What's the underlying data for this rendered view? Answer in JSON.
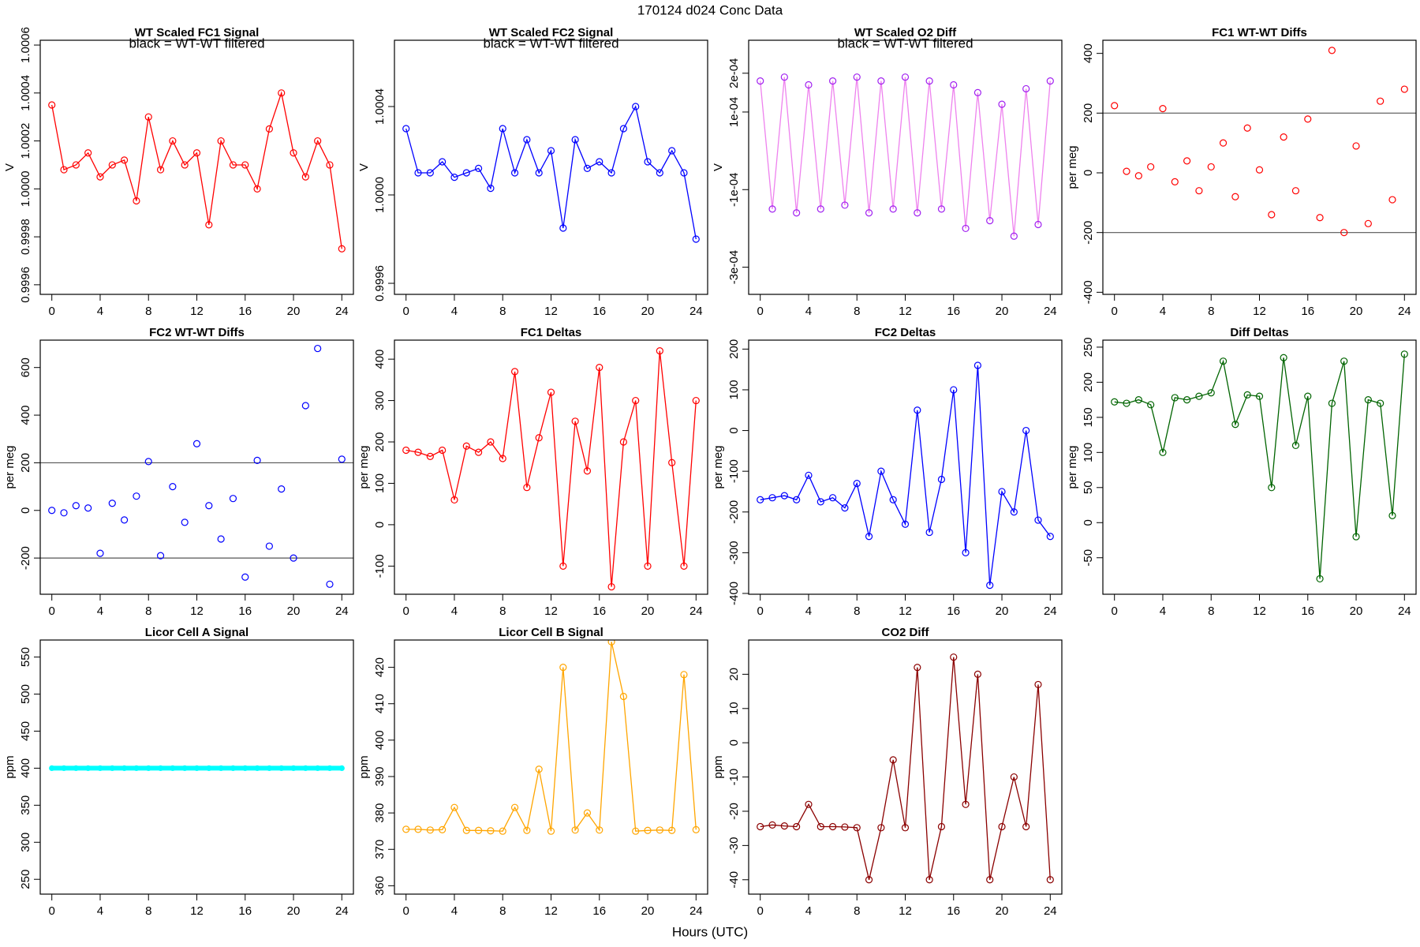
{
  "title": "170124   d024   Conc Data",
  "xlabel": "Hours (UTC)",
  "chart_data": [
    {
      "type": "line",
      "title": "WT Scaled FC1 Signal",
      "annotation": "black = WT-WT filtered",
      "ylabel": "V",
      "color": "#ff0000",
      "marker_color": "#ff0000",
      "x": [
        0,
        1,
        2,
        3,
        4,
        5,
        6,
        7,
        8,
        9,
        10,
        11,
        12,
        13,
        14,
        15,
        16,
        17,
        18,
        19,
        20,
        21,
        22,
        23,
        24
      ],
      "values": [
        1.00035,
        1.00008,
        1.0001,
        1.00015,
        1.00005,
        1.0001,
        1.00012,
        0.99995,
        1.0003,
        1.00008,
        1.0002,
        1.0001,
        1.00015,
        0.99985,
        1.0002,
        1.0001,
        1.0001,
        1.0,
        1.00025,
        1.0004,
        1.00015,
        1.00005,
        1.0002,
        1.0001,
        0.99975
      ],
      "xlim": [
        -0.96,
        24.96
      ],
      "xticks": [
        0,
        4,
        8,
        12,
        16,
        20,
        24
      ],
      "ylim": [
        0.99956,
        1.00062
      ],
      "yticks": [
        {
          "value": 0.9996,
          "label": "0.9996"
        },
        {
          "value": 0.9998,
          "label": "0.9998"
        },
        {
          "value": 1.0,
          "label": "1.0000"
        },
        {
          "value": 1.0002,
          "label": "1.0002"
        },
        {
          "value": 1.0004,
          "label": "1.0004"
        },
        {
          "value": 1.0006,
          "label": "1.0006"
        }
      ]
    },
    {
      "type": "line",
      "title": "WT Scaled FC2 Signal",
      "annotation": "black = WT-WT filtered",
      "ylabel": "V",
      "color": "#0000ff",
      "marker_color": "#0000ff",
      "x": [
        0,
        1,
        2,
        3,
        4,
        5,
        6,
        7,
        8,
        9,
        10,
        11,
        12,
        13,
        14,
        15,
        16,
        17,
        18,
        19,
        20,
        21,
        22,
        23,
        24
      ],
      "values": [
        1.0003,
        1.0001,
        1.0001,
        1.00015,
        1.00008,
        1.0001,
        1.00012,
        1.00003,
        1.0003,
        1.0001,
        1.00025,
        1.0001,
        1.0002,
        0.99985,
        1.00025,
        1.00012,
        1.00015,
        1.0001,
        1.0003,
        1.0004,
        1.00015,
        1.0001,
        1.0002,
        1.0001,
        0.9998
      ],
      "xlim": [
        -0.96,
        24.96
      ],
      "xticks": [
        0,
        4,
        8,
        12,
        16,
        20,
        24
      ],
      "ylim": [
        0.99955,
        1.0007
      ],
      "yticks": [
        {
          "value": 0.9996,
          "label": "0.9996"
        },
        {
          "value": 1.0,
          "label": "1.0000"
        },
        {
          "value": 1.0004,
          "label": "1.0004"
        }
      ]
    },
    {
      "type": "line",
      "title": "WT Scaled O2 Diff",
      "annotation": "black = WT-WT filtered",
      "ylabel": "V",
      "color": "#ee82ee",
      "marker_color": "#a020f0",
      "x": [
        0,
        1,
        2,
        3,
        4,
        5,
        6,
        7,
        8,
        9,
        10,
        11,
        12,
        13,
        14,
        15,
        16,
        17,
        18,
        19,
        20,
        21,
        22,
        23,
        24
      ],
      "values": [
        0.00018,
        -0.00015,
        0.00019,
        -0.00016,
        0.00017,
        -0.00015,
        0.00018,
        -0.00014,
        0.00019,
        -0.00016,
        0.00018,
        -0.00015,
        0.00019,
        -0.00016,
        0.00018,
        -0.00015,
        0.00017,
        -0.0002,
        0.00015,
        -0.00018,
        0.00012,
        -0.00022,
        0.00016,
        -0.00019,
        0.00018
      ],
      "xlim": [
        -0.96,
        24.96
      ],
      "xticks": [
        0,
        4,
        8,
        12,
        16,
        20,
        24
      ],
      "ylim": [
        -0.00037,
        0.000285
      ],
      "yticks": [
        {
          "value": -0.0003,
          "label": "-3e-04"
        },
        {
          "value": -0.0001,
          "label": "-1e-04"
        },
        {
          "value": 0.0001,
          "label": "1e-04"
        },
        {
          "value": 0.0002,
          "label": "2e-04"
        }
      ]
    },
    {
      "type": "scatter",
      "title": "FC1 WT-WT Diffs",
      "ylabel": "per meg",
      "color": "#ff0000",
      "hlines": [
        200,
        -200
      ],
      "x": [
        0,
        1,
        2,
        3,
        4,
        5,
        6,
        7,
        8,
        9,
        10,
        11,
        12,
        13,
        14,
        15,
        16,
        17,
        18,
        19,
        20,
        21,
        22,
        23,
        24
      ],
      "values": [
        225,
        5,
        -10,
        20,
        215,
        -30,
        40,
        -60,
        20,
        100,
        -80,
        150,
        10,
        -140,
        120,
        -60,
        180,
        -150,
        410,
        -200,
        90,
        -170,
        240,
        -90,
        280
      ],
      "xlim": [
        -0.96,
        24.96
      ],
      "xticks": [
        0,
        4,
        8,
        12,
        16,
        20,
        24
      ],
      "ylim": [
        -407,
        444
      ],
      "yticks": [
        -400,
        -200,
        0,
        200,
        400
      ]
    },
    {
      "type": "scatter",
      "title": "FC2 WT-WT Diffs",
      "ylabel": "per meg",
      "color": "#0000ff",
      "hlines": [
        200,
        -200
      ],
      "x": [
        0,
        1,
        2,
        3,
        4,
        5,
        6,
        7,
        8,
        9,
        10,
        11,
        12,
        13,
        14,
        15,
        16,
        17,
        18,
        19,
        20,
        21,
        22,
        23,
        24
      ],
      "values": [
        0,
        -10,
        20,
        10,
        -180,
        30,
        -40,
        60,
        205,
        -190,
        100,
        -50,
        280,
        20,
        -120,
        50,
        -280,
        210,
        -150,
        90,
        -200,
        440,
        680,
        -310,
        215
      ],
      "xlim": [
        -0.96,
        24.96
      ],
      "xticks": [
        0,
        4,
        8,
        12,
        16,
        20,
        24
      ],
      "ylim": [
        -352,
        715
      ],
      "yticks": [
        -200,
        0,
        200,
        400,
        600
      ]
    },
    {
      "type": "line",
      "title": "FC1 Deltas",
      "ylabel": "per meg",
      "color": "#ff0000",
      "marker_color": "#ff0000",
      "x": [
        0,
        1,
        2,
        3,
        4,
        5,
        6,
        7,
        8,
        9,
        10,
        11,
        12,
        13,
        14,
        15,
        16,
        17,
        18,
        19,
        20,
        21,
        22,
        23,
        24
      ],
      "values": [
        180,
        175,
        165,
        180,
        60,
        190,
        175,
        200,
        160,
        370,
        90,
        210,
        320,
        -100,
        250,
        130,
        380,
        -150,
        200,
        300,
        -100,
        420,
        150,
        -100,
        300
      ],
      "xlim": [
        -0.96,
        24.96
      ],
      "xticks": [
        0,
        4,
        8,
        12,
        16,
        20,
        24
      ],
      "ylim": [
        -168,
        446
      ],
      "yticks": [
        -100,
        0,
        100,
        200,
        300,
        400
      ]
    },
    {
      "type": "line",
      "title": "FC2 Deltas",
      "ylabel": "per meg",
      "color": "#0000ff",
      "marker_color": "#0000ff",
      "x": [
        0,
        1,
        2,
        3,
        4,
        5,
        6,
        7,
        8,
        9,
        10,
        11,
        12,
        13,
        14,
        15,
        16,
        17,
        18,
        19,
        20,
        21,
        22,
        23,
        24
      ],
      "values": [
        -170,
        -165,
        -160,
        -170,
        -110,
        -175,
        -165,
        -190,
        -130,
        -260,
        -100,
        -170,
        -230,
        50,
        -250,
        -120,
        100,
        -300,
        160,
        -380,
        -150,
        -200,
        0,
        -220,
        -260
      ],
      "xlim": [
        -0.96,
        24.96
      ],
      "xticks": [
        0,
        4,
        8,
        12,
        16,
        20,
        24
      ],
      "ylim": [
        -402,
        222
      ],
      "yticks": [
        -400,
        -300,
        -200,
        -100,
        0,
        100,
        200
      ]
    },
    {
      "type": "line",
      "title": "Diff Deltas",
      "ylabel": "per meg",
      "color": "#006400",
      "marker_color": "#006400",
      "x": [
        0,
        1,
        2,
        3,
        4,
        5,
        6,
        7,
        8,
        9,
        10,
        11,
        12,
        13,
        14,
        15,
        16,
        17,
        18,
        19,
        20,
        21,
        22,
        23,
        24
      ],
      "values": [
        172,
        170,
        175,
        168,
        100,
        178,
        175,
        180,
        185,
        230,
        140,
        182,
        180,
        50,
        235,
        110,
        180,
        -80,
        170,
        230,
        -20,
        175,
        170,
        10,
        240
      ],
      "xlim": [
        -0.96,
        24.96
      ],
      "xticks": [
        0,
        4,
        8,
        12,
        16,
        20,
        24
      ],
      "ylim": [
        -102,
        260
      ],
      "yticks": [
        -50,
        0,
        50,
        100,
        150,
        200,
        250
      ]
    },
    {
      "type": "line",
      "title": "Licor Cell A Signal",
      "ylabel": "ppm",
      "color": "#00ffff",
      "marker_color": "#00ffff",
      "line_width": 6,
      "x": [
        0,
        1,
        2,
        3,
        4,
        5,
        6,
        7,
        8,
        9,
        10,
        11,
        12,
        13,
        14,
        15,
        16,
        17,
        18,
        19,
        20,
        21,
        22,
        23,
        24
      ],
      "values": [
        400,
        400,
        400,
        400,
        400,
        400,
        400,
        400,
        400,
        400,
        400,
        400,
        400,
        400,
        400,
        400,
        400,
        400,
        400,
        400,
        400,
        400,
        400,
        400,
        400
      ],
      "xlim": [
        -0.96,
        24.96
      ],
      "xticks": [
        0,
        4,
        8,
        12,
        16,
        20,
        24
      ],
      "ylim": [
        230,
        573
      ],
      "yticks": [
        250,
        300,
        350,
        400,
        450,
        500,
        550
      ]
    },
    {
      "type": "line",
      "title": "Licor Cell B Signal",
      "ylabel": "ppm",
      "color": "#ffa500",
      "marker_color": "#ffa500",
      "x": [
        0,
        1,
        2,
        3,
        4,
        5,
        6,
        7,
        8,
        9,
        10,
        11,
        12,
        13,
        14,
        15,
        16,
        17,
        18,
        19,
        20,
        21,
        22,
        23,
        24
      ],
      "values": [
        375.5,
        375.5,
        375.3,
        375.4,
        381.5,
        375.2,
        375.2,
        375.1,
        375.0,
        381.5,
        375.2,
        392,
        375.0,
        420,
        375.3,
        380,
        375.3,
        427,
        412,
        375.0,
        375.2,
        375.3,
        375.2,
        418,
        375.4
      ],
      "xlim": [
        -0.96,
        24.96
      ],
      "xticks": [
        0,
        4,
        8,
        12,
        16,
        20,
        24
      ],
      "ylim": [
        357.7,
        427.5
      ],
      "yticks": [
        360,
        370,
        380,
        390,
        400,
        410,
        420
      ]
    },
    {
      "type": "line",
      "title": "CO2 Diff",
      "ylabel": "ppm",
      "color": "#8b0000",
      "marker_color": "#8b0000",
      "x": [
        0,
        1,
        2,
        3,
        4,
        5,
        6,
        7,
        8,
        9,
        10,
        11,
        12,
        13,
        14,
        15,
        16,
        17,
        18,
        19,
        20,
        21,
        22,
        23,
        24
      ],
      "values": [
        -24.5,
        -24,
        -24.3,
        -24.5,
        -18,
        -24.5,
        -24.5,
        -24.6,
        -24.8,
        -40,
        -24.8,
        -5,
        -24.8,
        22,
        -40,
        -24.5,
        25,
        -18,
        20,
        -40,
        -24.5,
        -10,
        -24.5,
        17,
        -40
      ],
      "xlim": [
        -0.96,
        24.96
      ],
      "xticks": [
        0,
        4,
        8,
        12,
        16,
        20,
        24
      ],
      "ylim": [
        -44.2,
        30
      ],
      "yticks": [
        -40,
        -30,
        -20,
        -10,
        0,
        10,
        20
      ]
    }
  ]
}
